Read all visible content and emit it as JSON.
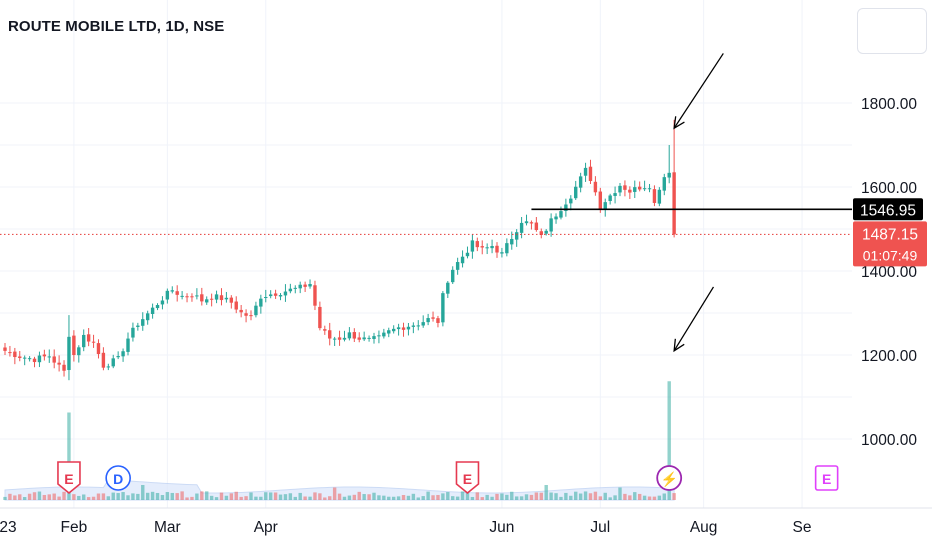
{
  "header": {
    "title": "ROUTE MOBILE LTD, 1D, NSE"
  },
  "colors": {
    "up": "#26a69a",
    "down": "#ef5350",
    "grid": "#f0f3fa",
    "axis_text": "#131722",
    "price_line": "#e53935",
    "level_line": "#000000",
    "volume_avg": "#b7cdf2",
    "earnings": "#e53950",
    "dividend": "#2962ff",
    "split": "#9c27b0",
    "future_earnings": "#e040fb"
  },
  "chart_data": {
    "type": "candlestick",
    "title": "ROUTE MOBILE LTD, 1D, NSE",
    "y_ticks": [
      "1800.00",
      "1600.00",
      "1400.00",
      "1200.00",
      "1000.00"
    ],
    "y_tick_values": [
      1800,
      1600,
      1400,
      1200,
      1000
    ],
    "ylim": [
      865,
      1970
    ],
    "x_ticks": [
      "23",
      "Feb",
      "Mar",
      "Apr",
      "Jun",
      "Jul",
      "Aug",
      "Se"
    ],
    "x_tick_day_index": [
      -6,
      14,
      33,
      53,
      101,
      121,
      142,
      162
    ],
    "price_labels": {
      "level": "1546.95",
      "last": "1487.15",
      "countdown": "01:07:49"
    },
    "level_value": 1546.95,
    "level_start_day": 107,
    "last_value": 1487.15,
    "events": [
      {
        "letter": "E",
        "type": "earnings",
        "day": 13
      },
      {
        "letter": "D",
        "type": "dividend",
        "day": 23
      },
      {
        "letter": "E",
        "type": "earnings",
        "day": 94
      },
      {
        "letter": "⚡",
        "type": "split",
        "day": 135
      },
      {
        "letter": "E",
        "type": "future_earnings",
        "day": 167
      }
    ],
    "annotations": [
      {
        "type": "arrow",
        "from_day": 146,
        "from_price": 1918,
        "to_day": 136,
        "to_price": 1740
      },
      {
        "type": "arrow",
        "from_day": 144,
        "from_price": 1362,
        "to_day": 136,
        "to_price": 1210
      }
    ],
    "anchor_points": [
      [
        0,
        1210
      ],
      [
        3,
        1197
      ],
      [
        6,
        1190
      ],
      [
        9,
        1198
      ],
      [
        12,
        1160
      ],
      [
        13,
        1250
      ],
      [
        14,
        1200
      ],
      [
        16,
        1245
      ],
      [
        18,
        1230
      ],
      [
        20,
        1175
      ],
      [
        23,
        1190
      ],
      [
        25,
        1240
      ],
      [
        27,
        1275
      ],
      [
        30,
        1310
      ],
      [
        32,
        1335
      ],
      [
        34,
        1355
      ],
      [
        36,
        1340
      ],
      [
        38,
        1345
      ],
      [
        40,
        1330
      ],
      [
        42,
        1340
      ],
      [
        44,
        1335
      ],
      [
        46,
        1325
      ],
      [
        48,
        1300
      ],
      [
        50,
        1290
      ],
      [
        52,
        1340
      ],
      [
        54,
        1345
      ],
      [
        56,
        1350
      ],
      [
        58,
        1355
      ],
      [
        60,
        1360
      ],
      [
        62,
        1370
      ],
      [
        64,
        1265
      ],
      [
        66,
        1240
      ],
      [
        68,
        1240
      ],
      [
        70,
        1250
      ],
      [
        72,
        1240
      ],
      [
        74,
        1235
      ],
      [
        76,
        1240
      ],
      [
        78,
        1255
      ],
      [
        80,
        1265
      ],
      [
        82,
        1270
      ],
      [
        84,
        1275
      ],
      [
        86,
        1285
      ],
      [
        88,
        1280
      ],
      [
        89,
        1340
      ],
      [
        90,
        1380
      ],
      [
        91,
        1405
      ],
      [
        93,
        1435
      ],
      [
        95,
        1465
      ],
      [
        97,
        1450
      ],
      [
        99,
        1460
      ],
      [
        101,
        1440
      ],
      [
        103,
        1480
      ],
      [
        105,
        1520
      ],
      [
        107,
        1510
      ],
      [
        109,
        1480
      ],
      [
        111,
        1520
      ],
      [
        113,
        1550
      ],
      [
        115,
        1580
      ],
      [
        117,
        1620
      ],
      [
        118,
        1640
      ],
      [
        119,
        1620
      ],
      [
        121,
        1555
      ],
      [
        123,
        1580
      ],
      [
        125,
        1605
      ],
      [
        127,
        1590
      ],
      [
        129,
        1600
      ],
      [
        131,
        1605
      ],
      [
        132,
        1560
      ],
      [
        133,
        1600
      ],
      [
        134,
        1625
      ],
      [
        135,
        1640
      ],
      [
        136,
        1490
      ]
    ],
    "volume_spikes": {
      "13": 0.7,
      "94": 0.18,
      "135": 0.95,
      "67": 0.1,
      "110": 0.12,
      "125": 0.1,
      "28": 0.12
    }
  }
}
